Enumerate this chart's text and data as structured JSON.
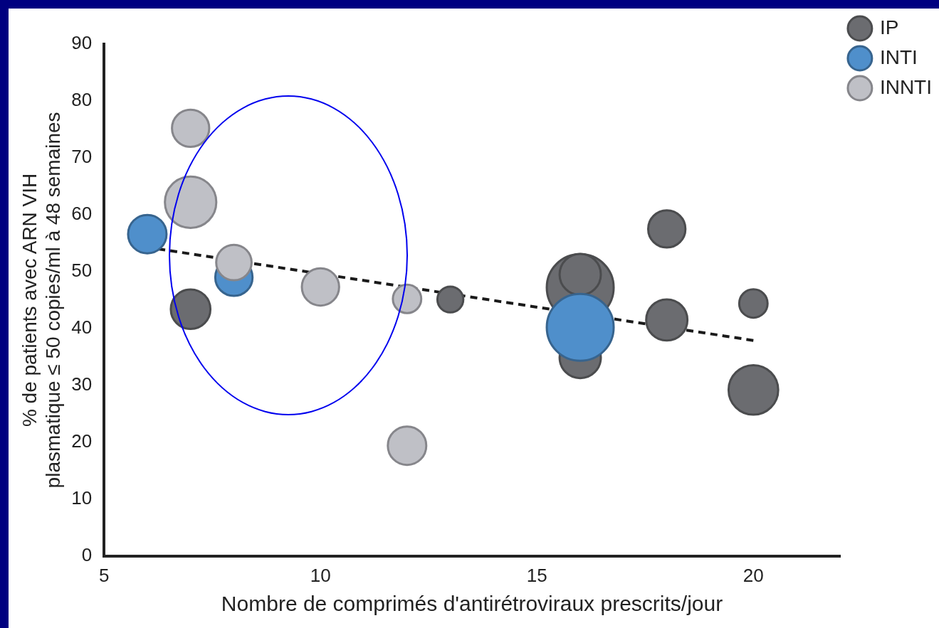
{
  "chart_data": {
    "type": "bubble",
    "xlabel": "Nombre de comprimés d'antirétroviraux prescrits/jour",
    "ylabel": "% de patients avec ARN VIH\nplasmatique ≤ 50 copies/ml à 48 semaines",
    "xlim": [
      5,
      22
    ],
    "xticks": [
      5,
      10,
      15,
      20
    ],
    "ylim": [
      0,
      90
    ],
    "yticks": [
      0,
      10,
      20,
      30,
      40,
      50,
      60,
      70,
      80,
      90
    ],
    "grid": false,
    "legend": "top right",
    "marker": "circle",
    "series": [
      {
        "name": "IP",
        "color": "#6b6c70",
        "x": [
          7,
          13,
          16,
          16,
          16,
          18,
          18,
          20,
          20
        ],
        "values": [
          43.4,
          45.1,
          47.2,
          49.5,
          34.9,
          57.5,
          41.5,
          44.4,
          29.2
        ],
        "sizes": [
          0.35,
          0.15,
          1,
          0.38,
          0.38,
          0.31,
          0.38,
          0.18,
          0.55
        ]
      },
      {
        "name": "INTI",
        "color": "#4f8fcb",
        "x": [
          6,
          8,
          16
        ],
        "values": [
          56.6,
          49,
          40.2
        ],
        "sizes": [
          0.33,
          0.31,
          1
        ]
      },
      {
        "name": "INNTI",
        "color": "#bfc0c6",
        "x": [
          7,
          7,
          8,
          10,
          12,
          12
        ],
        "values": [
          75.2,
          62.2,
          51.6,
          47.3,
          45.2,
          19.4
        ],
        "sizes": [
          0.31,
          0.59,
          0.28,
          0.31,
          0.18,
          0.33
        ]
      },
      {
        "type": "line",
        "color": "#1a1a1a",
        "line_style": "dashed",
        "marker": "none",
        "x": [
          6.25,
          20
        ],
        "values": [
          54,
          37.9
        ]
      }
    ]
  }
}
